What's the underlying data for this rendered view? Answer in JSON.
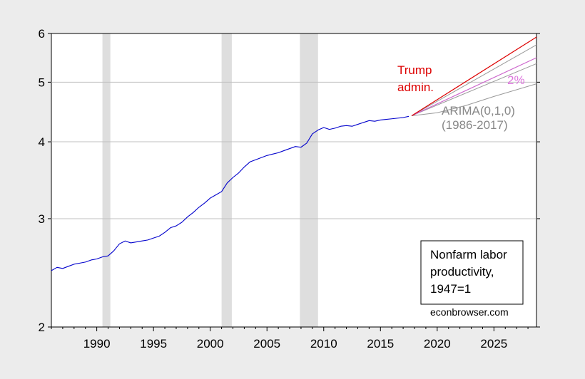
{
  "chart_data": {
    "type": "line",
    "y_scale": "log",
    "xlim": [
      1986,
      2028.75
    ],
    "ylim": [
      2,
      6
    ],
    "x_ticks": [
      1990,
      1995,
      2000,
      2005,
      2010,
      2015,
      2020,
      2025
    ],
    "y_ticks": [
      2,
      3,
      4,
      5,
      6
    ],
    "grid": "horizontal",
    "colors": {
      "actual": "#0000cc",
      "trump": "#dd0000",
      "two_pct": "#cc66cc",
      "arima": "#999999",
      "recession": "#dedede"
    },
    "recessions": [
      [
        1990.5,
        1991.2
      ],
      [
        2001.0,
        2001.9
      ],
      [
        2007.9,
        2009.5
      ]
    ],
    "series": [
      {
        "key": "actual",
        "x": [
          1986.0,
          1986.5,
          1987.0,
          1987.5,
          1988.0,
          1988.5,
          1989.0,
          1989.5,
          1990.0,
          1990.5,
          1991.0,
          1991.5,
          1992.0,
          1992.5,
          1993.0,
          1993.5,
          1994.0,
          1994.5,
          1995.0,
          1995.5,
          1996.0,
          1996.5,
          1997.0,
          1997.5,
          1998.0,
          1998.5,
          1999.0,
          1999.5,
          2000.0,
          2000.5,
          2001.0,
          2001.5,
          2002.0,
          2002.5,
          2003.0,
          2003.5,
          2004.0,
          2004.5,
          2005.0,
          2005.5,
          2006.0,
          2006.5,
          2007.0,
          2007.5,
          2008.0,
          2008.5,
          2009.0,
          2009.5,
          2010.0,
          2010.5,
          2011.0,
          2011.5,
          2012.0,
          2012.5,
          2013.0,
          2013.5,
          2014.0,
          2014.5,
          2015.0,
          2015.5,
          2016.0,
          2016.5,
          2017.0,
          2017.5
        ],
        "y": [
          2.47,
          2.5,
          2.49,
          2.51,
          2.53,
          2.54,
          2.55,
          2.57,
          2.58,
          2.6,
          2.61,
          2.66,
          2.73,
          2.76,
          2.74,
          2.75,
          2.76,
          2.77,
          2.79,
          2.81,
          2.85,
          2.9,
          2.92,
          2.96,
          3.02,
          3.07,
          3.13,
          3.18,
          3.24,
          3.28,
          3.32,
          3.43,
          3.5,
          3.56,
          3.64,
          3.71,
          3.74,
          3.77,
          3.8,
          3.82,
          3.84,
          3.87,
          3.9,
          3.93,
          3.92,
          3.98,
          4.12,
          4.18,
          4.22,
          4.19,
          4.21,
          4.24,
          4.25,
          4.24,
          4.27,
          4.3,
          4.33,
          4.32,
          4.34,
          4.35,
          4.36,
          4.37,
          4.38,
          4.4
        ]
      },
      {
        "key": "trump",
        "x": [
          2017.75,
          2028.75
        ],
        "y": [
          4.41,
          5.92
        ]
      },
      {
        "key": "two_pct",
        "x": [
          2017.75,
          2028.75
        ],
        "y": [
          4.41,
          5.48
        ]
      },
      {
        "key": "arima_upper",
        "x": [
          2017.75,
          2028.75
        ],
        "y": [
          4.41,
          5.75
        ]
      },
      {
        "key": "arima_mean",
        "x": [
          2017.75,
          2028.75
        ],
        "y": [
          4.41,
          5.36
        ]
      },
      {
        "key": "arima_lower",
        "x": [
          2017.75,
          2020.0,
          2022.5,
          2025.0,
          2028.75
        ],
        "y": [
          4.41,
          4.46,
          4.58,
          4.74,
          4.97
        ]
      }
    ],
    "annotations": {
      "trump_line1": "Trump",
      "trump_line2": "admin.",
      "two_pct": "2%",
      "arima_line1": "ARIMA(0,1,0)",
      "arima_line2": "(1986-2017)"
    },
    "legend": {
      "line1": "Nonfarm labor",
      "line2": "productivity,",
      "line3": "1947=1"
    },
    "credit": "econbrowser.com"
  }
}
